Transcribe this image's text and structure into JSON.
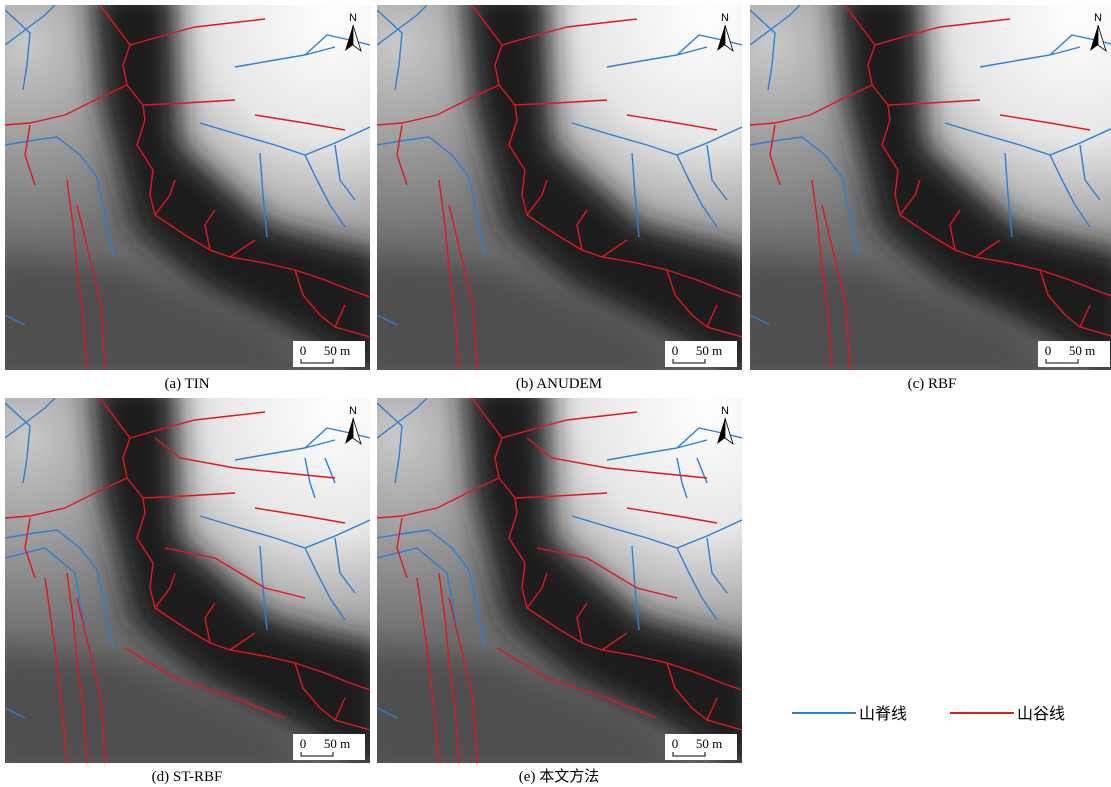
{
  "panels": [
    {
      "caption": "(a) TIN",
      "north": "N",
      "scale": {
        "start": "0",
        "end": "50 m"
      }
    },
    {
      "caption": "(b) ANUDEM",
      "north": "N",
      "scale": {
        "start": "0",
        "end": "50 m"
      }
    },
    {
      "caption": "(c) RBF",
      "north": "N",
      "scale": {
        "start": "0",
        "end": "50 m"
      }
    },
    {
      "caption": "(d) ST-RBF",
      "north": "N",
      "scale": {
        "start": "0",
        "end": "50 m"
      }
    },
    {
      "caption": "(e) 本文方法",
      "north": "N",
      "scale": {
        "start": "0",
        "end": "50 m"
      }
    }
  ],
  "legend": [
    {
      "label": "山脊线",
      "color": "#2b7fd6"
    },
    {
      "label": "山谷线",
      "color": "#e3161c"
    }
  ]
}
